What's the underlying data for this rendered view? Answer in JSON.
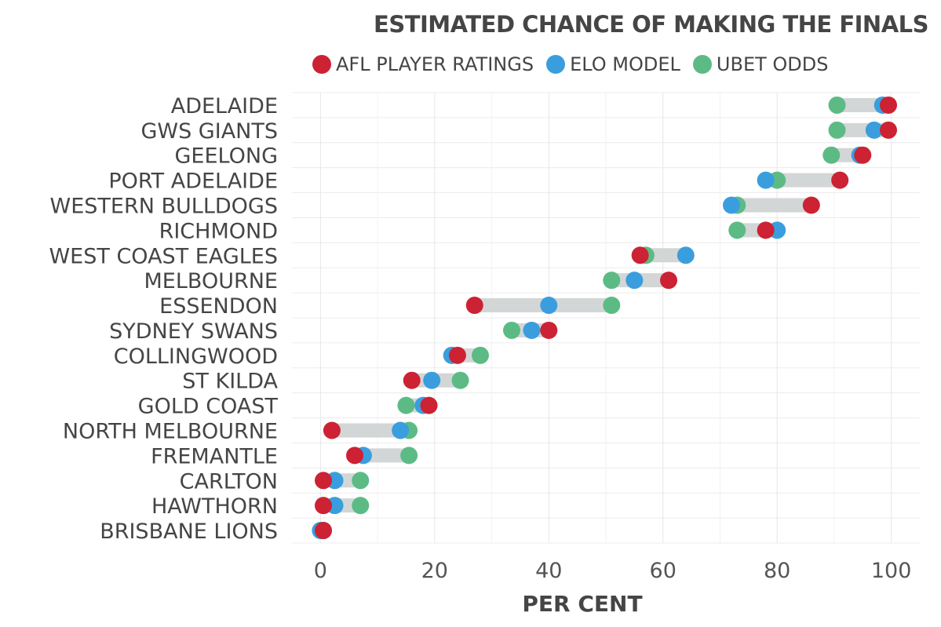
{
  "chart_data": {
    "type": "dumbbell",
    "title": "ESTIMATED CHANCE OF MAKING THE FINALS",
    "xlabel": "PER CENT",
    "ylabel": "",
    "xlim": [
      -5,
      105
    ],
    "xticks": [
      0,
      20,
      40,
      60,
      80,
      100
    ],
    "grid": true,
    "legend_position": "top",
    "categories": [
      "ADELAIDE",
      "GWS GIANTS",
      "GEELONG",
      "PORT ADELAIDE",
      "WESTERN BULLDOGS",
      "RICHMOND",
      "WEST COAST EAGLES",
      "MELBOURNE",
      "ESSENDON",
      "SYDNEY SWANS",
      "COLLINGWOOD",
      "ST KILDA",
      "GOLD COAST",
      "NORTH MELBOURNE",
      "FREMANTLE",
      "CARLTON",
      "HAWTHORN",
      "BRISBANE LIONS"
    ],
    "series": [
      {
        "name": "AFL PLAYER RATINGS",
        "color": "#cc2233",
        "values": [
          99.5,
          99.5,
          95,
          91,
          86,
          78,
          56,
          61,
          27,
          40,
          24,
          16,
          19,
          2,
          6,
          0.5,
          0.5,
          0.5
        ]
      },
      {
        "name": "ELO MODEL",
        "color": "#3a9ede",
        "values": [
          98.5,
          97,
          94.5,
          78,
          72,
          80,
          64,
          55,
          40,
          37,
          23,
          19.5,
          18,
          14,
          7.5,
          2.5,
          2.5,
          0
        ]
      },
      {
        "name": "UBET ODDS",
        "color": "#5cbb85",
        "values": [
          90.5,
          90.5,
          89.5,
          80,
          73,
          73,
          57,
          51,
          51,
          33.5,
          28,
          24.5,
          15,
          15.5,
          15.5,
          7,
          7,
          0.5
        ]
      }
    ]
  }
}
